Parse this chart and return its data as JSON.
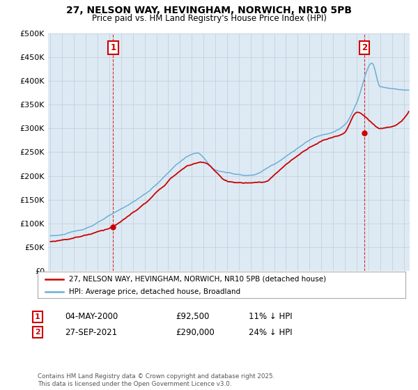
{
  "title": "27, NELSON WAY, HEVINGHAM, NORWICH, NR10 5PB",
  "subtitle": "Price paid vs. HM Land Registry's House Price Index (HPI)",
  "ylim": [
    0,
    500000
  ],
  "yticks": [
    0,
    50000,
    100000,
    150000,
    200000,
    250000,
    300000,
    350000,
    400000,
    450000,
    500000
  ],
  "ytick_labels": [
    "£0",
    "£50K",
    "£100K",
    "£150K",
    "£200K",
    "£250K",
    "£300K",
    "£350K",
    "£400K",
    "£450K",
    "£500K"
  ],
  "hpi_color": "#6baed6",
  "price_color": "#cc0000",
  "plot_bg_color": "#ddeaf4",
  "annotation1_date": "04-MAY-2000",
  "annotation1_price": "£92,500",
  "annotation1_hpi": "11% ↓ HPI",
  "annotation2_date": "27-SEP-2021",
  "annotation2_price": "£290,000",
  "annotation2_hpi": "24% ↓ HPI",
  "legend_line1": "27, NELSON WAY, HEVINGHAM, NORWICH, NR10 5PB (detached house)",
  "legend_line2": "HPI: Average price, detached house, Broadland",
  "footer": "Contains HM Land Registry data © Crown copyright and database right 2025.\nThis data is licensed under the Open Government Licence v3.0.",
  "background_color": "#ffffff",
  "grid_color": "#c0cdd8",
  "t1_x": 2000.33,
  "t1_y": 92500,
  "t2_x": 2021.67,
  "t2_y": 290000,
  "xmin": 1994.8,
  "xmax": 2025.5
}
